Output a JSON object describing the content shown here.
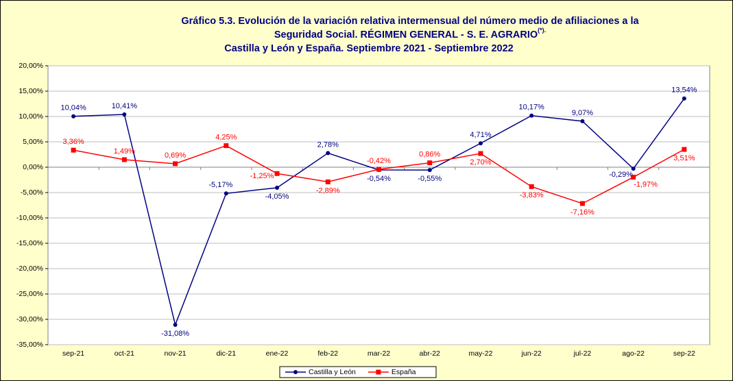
{
  "chart_data": {
    "type": "line",
    "title_lines": [
      "Gráfico 5.3. Evolución de la variación relativa intermensual del número medio de afiliaciones a la",
      "Seguridad Social. RÉGIMEN GENERAL - S. E. AGRARIO",
      "Castilla y León y España. Septiembre 2021 - Septiembre 2022"
    ],
    "title_note": "(*).",
    "categories": [
      "sep-21",
      "oct-21",
      "nov-21",
      "dic-21",
      "ene-22",
      "feb-22",
      "mar-22",
      "abr-22",
      "may-22",
      "jun-22",
      "jul-22",
      "ago-22",
      "sep-22"
    ],
    "series": [
      {
        "name": "Castilla y León",
        "color": "#000080",
        "marker": "circle",
        "values": [
          10.04,
          10.41,
          -31.08,
          -5.17,
          -4.05,
          2.78,
          -0.54,
          -0.55,
          4.71,
          10.17,
          9.07,
          -0.29,
          13.54
        ],
        "value_labels": [
          "10,04%",
          "10,41%",
          "-31,08%",
          "-5,17%",
          "-4,05%",
          "2,78%",
          "-0,54%",
          "-0,55%",
          "4,71%",
          "10,17%",
          "9,07%",
          "-0,29%",
          "13,54%"
        ]
      },
      {
        "name": "España",
        "color": "#ff0000",
        "marker": "square",
        "values": [
          3.36,
          1.49,
          0.69,
          4.25,
          -1.25,
          -2.89,
          -0.42,
          0.86,
          2.7,
          -3.83,
          -7.16,
          -1.97,
          3.51
        ],
        "value_labels": [
          "3,36%",
          "1,49%",
          "0,69%",
          "4,25%",
          "-1,25%",
          "-2,89%",
          "-0,42%",
          "0,86%",
          "2,70%",
          "-3,83%",
          "-7,16%",
          "-1,97%",
          "3,51%"
        ]
      }
    ],
    "ylim": [
      -35,
      20
    ],
    "yticks": [
      {
        "value": 20,
        "label": "20,00%"
      },
      {
        "value": 15,
        "label": "15,00%"
      },
      {
        "value": 10,
        "label": "10,00%"
      },
      {
        "value": 5,
        "label": "5,00%"
      },
      {
        "value": 0,
        "label": "0,00%"
      },
      {
        "value": -5,
        "label": "-5,00%"
      },
      {
        "value": -10,
        "label": "-10,00%"
      },
      {
        "value": -15,
        "label": "-15,00%"
      },
      {
        "value": -20,
        "label": "-20,00%"
      },
      {
        "value": -25,
        "label": "-25,00%"
      },
      {
        "value": -30,
        "label": "-30,00%"
      },
      {
        "value": -35,
        "label": "-35,00%"
      }
    ],
    "grid": true,
    "legend": "bottom"
  }
}
